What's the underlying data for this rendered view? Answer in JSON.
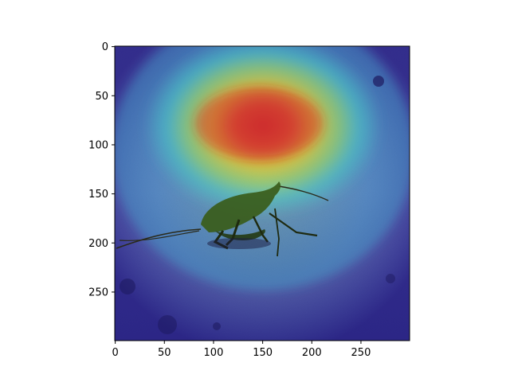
{
  "figure": {
    "background": "#ffffff"
  },
  "image": {
    "subject": "insect-on-ground",
    "overlay": "attention-heatmap",
    "colormap": "jet"
  },
  "axes": {
    "x_ticks": [
      0,
      50,
      100,
      150,
      200,
      250
    ],
    "y_ticks": [
      0,
      50,
      100,
      150,
      200,
      250
    ],
    "x_range": [
      0,
      299
    ],
    "y_range": [
      0,
      299
    ],
    "y_inverted": true
  },
  "tick_labels": {
    "x": [
      "0",
      "50",
      "100",
      "150",
      "200",
      "250"
    ],
    "y": [
      "0",
      "50",
      "100",
      "150",
      "200",
      "250"
    ]
  },
  "colors": {
    "hot": "#d62020",
    "warm": "#f4d21c",
    "mid": "#45d0c8",
    "cool": "#3b4fc6",
    "cold": "#241e8c"
  }
}
